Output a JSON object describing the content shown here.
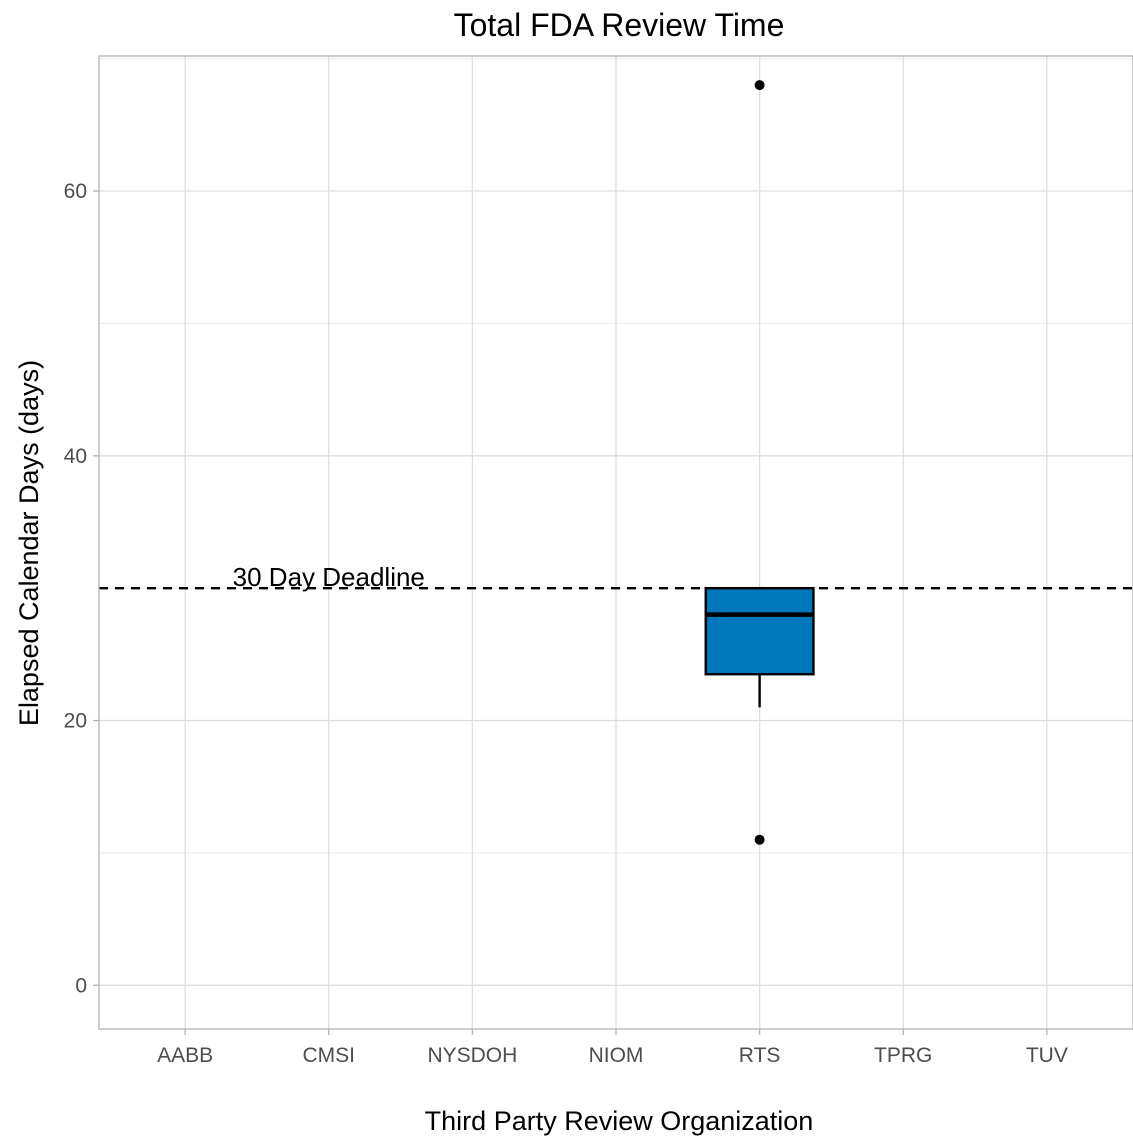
{
  "chart_data": {
    "type": "box",
    "title": "Total FDA Review Time",
    "xlabel": "Third Party Review Organization",
    "ylabel": "Elapsed Calendar Days (days)",
    "categories": [
      "AABB",
      "CMSI",
      "NYSDOH",
      "NIOM",
      "RTS",
      "TPRG",
      "TUV"
    ],
    "ylim": [
      -3.3,
      70.2
    ],
    "yticks": [
      0,
      20,
      40,
      60
    ],
    "grid": true,
    "boxes": [
      {
        "category": "RTS",
        "q1": 23.5,
        "median": 28,
        "q3": 30,
        "whisker_low": 21,
        "whisker_high": 30,
        "outliers": [
          11,
          68
        ],
        "fill": "#0077bb"
      }
    ],
    "reference_line": {
      "y": 30,
      "style": "dashed",
      "color": "#000000"
    },
    "annotations": [
      {
        "text": "30 Day Deadline",
        "x_category": "CMSI",
        "y": 30
      }
    ]
  }
}
